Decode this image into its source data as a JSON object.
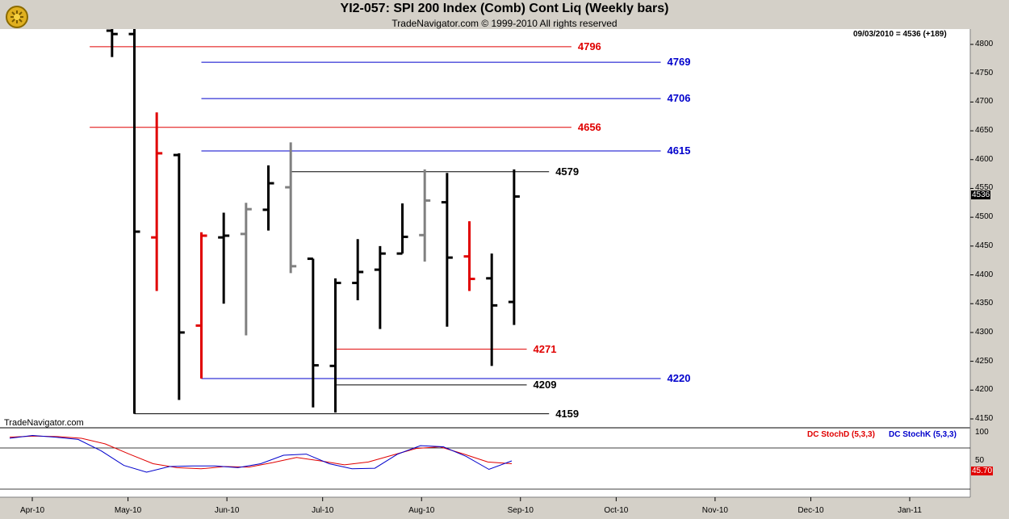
{
  "header": {
    "title": "YI2-057:  SPI 200 Index (Comb) Cont Liq  (Weekly bars)",
    "subtitle": "TradeNavigator.com © 1999-2010 All rights reserved"
  },
  "readout": "09/03/2010 = 4536 (+189)",
  "watermark": "TradeNavigator.com",
  "last_price_tag": "4536",
  "stoch_last_tag": "45.70",
  "colors": {
    "up": "#000000",
    "down_red": "#e00000",
    "gray": "#808080",
    "blue": "#0000cc",
    "red": "#e00000"
  },
  "chart_data": [
    {
      "type": "ohlc",
      "title": "YI2-057:  SPI 200 Index (Comb) Cont Liq  (Weekly bars)",
      "x_ticks": [
        "Apr-10",
        "May-10",
        "Jun-10",
        "Jul-10",
        "Aug-10",
        "Sep-10",
        "Oct-10",
        "Nov-10",
        "Dec-10",
        "Jan-11"
      ],
      "y_ticks": [
        4150,
        4200,
        4250,
        4300,
        4350,
        4400,
        4450,
        4500,
        4550,
        4600,
        4650,
        4700,
        4750,
        4800
      ],
      "ylim": [
        4130,
        4825
      ],
      "bars": [
        {
          "date": "2010-04-26",
          "open": 4830,
          "high": 4830,
          "low": 4778,
          "close": 4818,
          "color": "black"
        },
        {
          "date": "2010-05-03",
          "open": 4818,
          "high": 4830,
          "low": 4159,
          "close": 4475,
          "color": "black"
        },
        {
          "date": "2010-05-10",
          "open": 4465,
          "high": 4682,
          "low": 4372,
          "close": 4611,
          "color": "red"
        },
        {
          "date": "2010-05-17",
          "open": 4608,
          "high": 4611,
          "low": 4183,
          "close": 4300,
          "color": "black"
        },
        {
          "date": "2010-05-24",
          "open": 4312,
          "high": 4474,
          "low": 4220,
          "close": 4468,
          "color": "red"
        },
        {
          "date": "2010-05-31",
          "open": 4465,
          "high": 4508,
          "low": 4350,
          "close": 4468,
          "color": "black"
        },
        {
          "date": "2010-06-07",
          "open": 4471,
          "high": 4525,
          "low": 4295,
          "close": 4514,
          "color": "gray"
        },
        {
          "date": "2010-06-14",
          "open": 4513,
          "high": 4590,
          "low": 4477,
          "close": 4559,
          "color": "black"
        },
        {
          "date": "2010-06-21",
          "open": 4552,
          "high": 4630,
          "low": 4403,
          "close": 4415,
          "color": "gray"
        },
        {
          "date": "2010-06-28",
          "open": 4428,
          "high": 4428,
          "low": 4170,
          "close": 4243,
          "color": "black"
        },
        {
          "date": "2010-07-05",
          "open": 4242,
          "high": 4394,
          "low": 4161,
          "close": 4386,
          "color": "black"
        },
        {
          "date": "2010-07-12",
          "open": 4386,
          "high": 4462,
          "low": 4356,
          "close": 4405,
          "color": "black"
        },
        {
          "date": "2010-07-19",
          "open": 4409,
          "high": 4450,
          "low": 4306,
          "close": 4437,
          "color": "black"
        },
        {
          "date": "2010-07-26",
          "open": 4437,
          "high": 4524,
          "low": 4437,
          "close": 4466,
          "color": "black"
        },
        {
          "date": "2010-08-02",
          "open": 4469,
          "high": 4583,
          "low": 4423,
          "close": 4529,
          "color": "gray"
        },
        {
          "date": "2010-08-09",
          "open": 4526,
          "high": 4577,
          "low": 4310,
          "close": 4430,
          "color": "black"
        },
        {
          "date": "2010-08-16",
          "open": 4432,
          "high": 4493,
          "low": 4372,
          "close": 4393,
          "color": "red"
        },
        {
          "date": "2010-08-23",
          "open": 4394,
          "high": 4437,
          "low": 4242,
          "close": 4347,
          "color": "black"
        },
        {
          "date": "2010-08-30",
          "open": 4353,
          "high": 4583,
          "low": 4313,
          "close": 4536,
          "color": "black"
        }
      ],
      "levels": [
        {
          "value": 4796,
          "label": "4796",
          "color": "red",
          "start": "2010-04-19",
          "label_at": "2010-09-20"
        },
        {
          "value": 4769,
          "label": "4769",
          "color": "blue",
          "start": "2010-05-24",
          "label_at": "2010-10-18"
        },
        {
          "value": 4706,
          "label": "4706",
          "color": "blue",
          "start": "2010-05-24",
          "label_at": "2010-10-18"
        },
        {
          "value": 4656,
          "label": "4656",
          "color": "red",
          "start": "2010-04-19",
          "label_at": "2010-09-20"
        },
        {
          "value": 4615,
          "label": "4615",
          "color": "blue",
          "start": "2010-05-24",
          "label_at": "2010-10-18"
        },
        {
          "value": 4579,
          "label": "4579",
          "color": "black",
          "start": "2010-06-21",
          "label_at": "2010-09-13"
        },
        {
          "value": 4271,
          "label": "4271",
          "color": "red",
          "start": "2010-07-05",
          "label_at": "2010-09-06"
        },
        {
          "value": 4220,
          "label": "4220",
          "color": "blue",
          "start": "2010-05-24",
          "label_at": "2010-10-18"
        },
        {
          "value": 4209,
          "label": "4209",
          "color": "black",
          "start": "2010-07-05",
          "label_at": "2010-09-06"
        },
        {
          "value": 4159,
          "label": "4159",
          "color": "black",
          "start": "2010-05-03",
          "label_at": "2010-09-13"
        }
      ]
    },
    {
      "type": "line",
      "series": [
        {
          "name": "DC StochD (5,3,3)",
          "color": "red",
          "values": [
            92,
            94,
            93,
            90,
            80,
            62,
            45,
            38,
            36,
            40,
            39,
            47,
            56,
            50,
            43,
            48,
            60,
            72,
            75,
            62,
            48,
            45
          ]
        },
        {
          "name": "DC StochK (5,3,3)",
          "color": "blue",
          "values": [
            90,
            95,
            92,
            88,
            68,
            42,
            30,
            40,
            41,
            41,
            38,
            45,
            60,
            62,
            45,
            36,
            37,
            62,
            77,
            75,
            58,
            35,
            50
          ]
        }
      ],
      "y_ticks": [
        100,
        50
      ],
      "last_value": 45.7
    }
  ]
}
